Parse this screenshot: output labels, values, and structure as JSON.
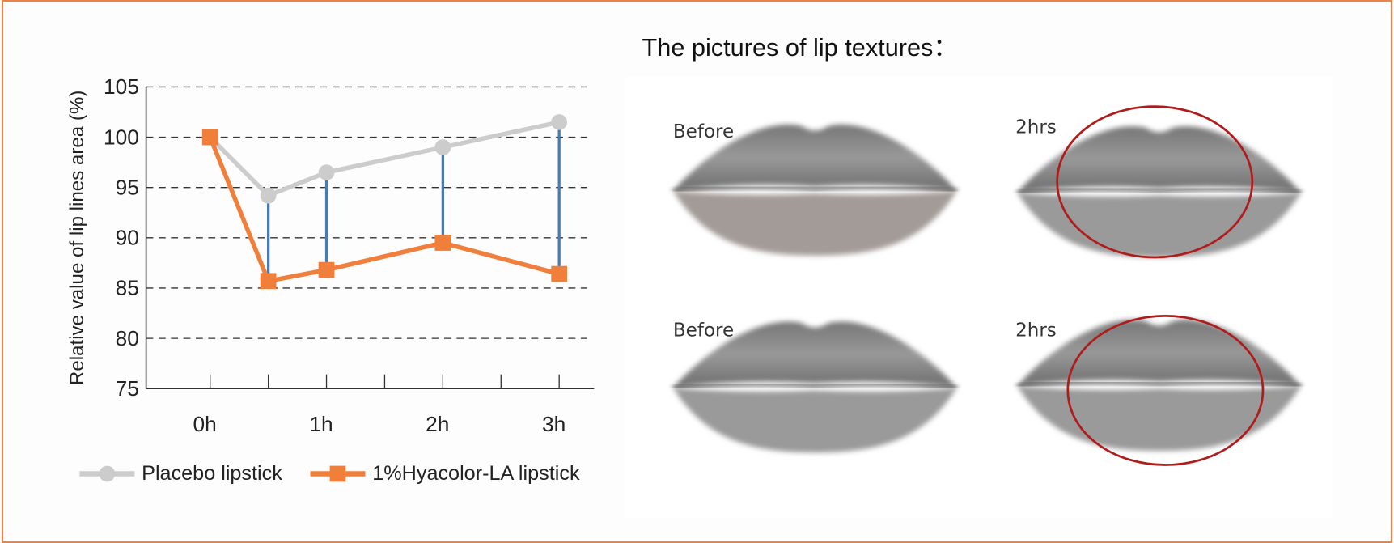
{
  "chart_data": {
    "type": "line",
    "y_label": "Relative value of lip lines area (%)",
    "x": [
      0,
      0.5,
      1,
      2,
      3
    ],
    "xlim": [
      -0.55,
      3.3
    ],
    "xticks": [
      {
        "value": 0,
        "label": "0h"
      },
      {
        "value": 1,
        "label": "1h"
      },
      {
        "value": 2,
        "label": "2h"
      },
      {
        "value": 3,
        "label": "3h"
      }
    ],
    "xminorticks": [
      0.5,
      1.5,
      2.5
    ],
    "ylim": [
      75,
      105
    ],
    "yticks": [
      75,
      80,
      85,
      90,
      95,
      100,
      105
    ],
    "grid": true,
    "series": [
      {
        "name": "Placebo lipstick",
        "color": "#cccccc",
        "marker": "circle",
        "values": [
          100,
          94.2,
          96.5,
          99,
          101.5
        ]
      },
      {
        "name": "1%Hyacolor-LA lipstick",
        "color": "#f07f3c",
        "marker": "square",
        "values": [
          100,
          85.7,
          86.8,
          89.5,
          86.4
        ]
      }
    ],
    "difference_color": "#4a7ab0"
  },
  "panel": {
    "title": "The pictures of lip textures：",
    "images": [
      {
        "label": "Before"
      },
      {
        "label": "2hrs"
      },
      {
        "label": "Before"
      },
      {
        "label": "2hrs"
      }
    ]
  }
}
